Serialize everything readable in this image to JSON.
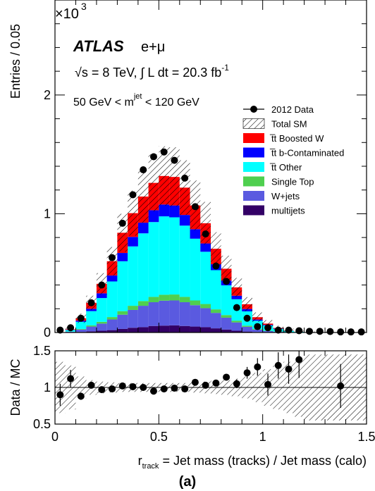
{
  "top_panel": {
    "ylabel": "Entries / 0.05",
    "multiplier_base": "×10",
    "multiplier_exp": "3",
    "yticks": [
      {
        "value": 0,
        "label": "0"
      },
      {
        "value": 1,
        "label": "1"
      },
      {
        "value": 2,
        "label": "2"
      }
    ],
    "ylim": [
      0,
      2.8
    ]
  },
  "annotations": {
    "atlas": "ATLAS",
    "channel": "e+μ",
    "energy_prefix": "√s = 8 TeV, ∫ L dt = 20.3 fb",
    "energy_sup": "-1",
    "mass_range_prefix": "50 GeV < m",
    "mass_range_sup": "jet",
    "mass_range_suffix": " < 120 GeV"
  },
  "bottom_panel": {
    "ylabel": "Data / MC",
    "yticks": [
      {
        "value": 0.5,
        "label": "0.5"
      },
      {
        "value": 1,
        "label": "1"
      },
      {
        "value": 1.5,
        "label": "1.5"
      }
    ],
    "ylim": [
      0.5,
      1.5
    ]
  },
  "xaxis": {
    "xlabel_r": "r",
    "xlabel_sub": "track",
    "xlabel_rest": " = Jet mass (tracks) / Jet mass (calo)",
    "xticks": [
      {
        "value": 0,
        "label": "0"
      },
      {
        "value": 0.5,
        "label": "0.5"
      },
      {
        "value": 1,
        "label": "1"
      },
      {
        "value": 1.5,
        "label": "1.5"
      }
    ],
    "xlim": [
      0,
      1.5
    ]
  },
  "panel_label": "(a)",
  "colors": {
    "boostedW": "#ff0000",
    "bcontam": "#0000ff",
    "ttother": "#00ffff",
    "singletop": "#4fcf4f",
    "wjets": "#5a5ae0",
    "multijets": "#330066",
    "data": "#000000"
  },
  "chart_data": {
    "type": "bar",
    "stacked": true,
    "bin_width": 0.05,
    "bin_edges_start": 0.0,
    "units": "entries (x10^3)",
    "series": [
      {
        "name": "multijets",
        "key": "multijets",
        "values": [
          0,
          0.002,
          0.005,
          0.01,
          0.015,
          0.02,
          0.03,
          0.04,
          0.045,
          0.055,
          0.058,
          0.06,
          0.055,
          0.05,
          0.045,
          0.035,
          0.025,
          0.015,
          0.008,
          0.004,
          0.002,
          0.001,
          0,
          0,
          0,
          0,
          0,
          0,
          0,
          0
        ]
      },
      {
        "name": "W+jets",
        "key": "wjets",
        "values": [
          0,
          0.005,
          0.02,
          0.04,
          0.06,
          0.09,
          0.12,
          0.15,
          0.18,
          0.2,
          0.21,
          0.21,
          0.2,
          0.18,
          0.16,
          0.13,
          0.1,
          0.07,
          0.04,
          0.02,
          0.01,
          0.005,
          0.002,
          0,
          0,
          0,
          0,
          0,
          0,
          0
        ]
      },
      {
        "name": "Single Top",
        "key": "singletop",
        "values": [
          0,
          0.001,
          0.005,
          0.01,
          0.015,
          0.02,
          0.03,
          0.035,
          0.04,
          0.045,
          0.05,
          0.05,
          0.045,
          0.04,
          0.035,
          0.03,
          0.022,
          0.015,
          0.01,
          0.005,
          0.003,
          0.002,
          0.001,
          0,
          0,
          0,
          0,
          0,
          0,
          0
        ]
      },
      {
        "name": "t̅t Other",
        "key": "ttother",
        "values": [
          0,
          0.012,
          0.06,
          0.12,
          0.2,
          0.3,
          0.42,
          0.5,
          0.57,
          0.63,
          0.66,
          0.65,
          0.6,
          0.52,
          0.44,
          0.33,
          0.25,
          0.18,
          0.12,
          0.07,
          0.045,
          0.022,
          0.012,
          0.006,
          0.003,
          0.002,
          0.001,
          0,
          0,
          0
        ]
      },
      {
        "name": "t̅t b-Contaminated",
        "key": "bcontam",
        "values": [
          0,
          0.003,
          0.01,
          0.02,
          0.04,
          0.05,
          0.07,
          0.08,
          0.09,
          0.1,
          0.1,
          0.1,
          0.09,
          0.08,
          0.07,
          0.05,
          0.04,
          0.03,
          0.02,
          0.01,
          0.005,
          0.003,
          0.001,
          0,
          0,
          0,
          0,
          0,
          0,
          0
        ]
      },
      {
        "name": "t̅t Boosted W",
        "key": "boostedW",
        "values": [
          0,
          0.004,
          0.02,
          0.05,
          0.08,
          0.12,
          0.17,
          0.2,
          0.22,
          0.23,
          0.24,
          0.24,
          0.23,
          0.2,
          0.17,
          0.13,
          0.1,
          0.07,
          0.04,
          0.02,
          0.01,
          0.005,
          0.002,
          0.001,
          0,
          0,
          0,
          0,
          0,
          0
        ]
      }
    ],
    "total_sm": [
      0,
      0.027,
      0.12,
      0.25,
      0.41,
      0.6,
      0.84,
      1.005,
      1.145,
      1.26,
      1.318,
      1.31,
      1.22,
      1.07,
      0.92,
      0.705,
      0.537,
      0.38,
      0.238,
      0.129,
      0.075,
      0.038,
      0.018,
      0.007,
      0.003,
      0.002,
      0.001,
      0,
      0,
      0
    ],
    "total_sm_unc": [
      0,
      0.015,
      0.04,
      0.06,
      0.09,
      0.12,
      0.16,
      0.19,
      0.22,
      0.24,
      0.25,
      0.25,
      0.23,
      0.21,
      0.18,
      0.14,
      0.11,
      0.08,
      0.06,
      0.04,
      0.03,
      0.02,
      0.015,
      0.01,
      0.008,
      0.006,
      0.005,
      0.004,
      0.003,
      0.003
    ],
    "data": {
      "name": "2012 Data",
      "x": [
        0.025,
        0.075,
        0.125,
        0.175,
        0.225,
        0.275,
        0.325,
        0.375,
        0.425,
        0.475,
        0.525,
        0.575,
        0.625,
        0.675,
        0.725,
        0.775,
        0.825,
        0.875,
        0.925,
        0.975,
        1.025,
        1.075,
        1.125,
        1.175,
        1.225,
        1.275,
        1.325,
        1.375,
        1.425,
        1.475
      ],
      "y": [
        0.02,
        0.04,
        0.12,
        0.25,
        0.4,
        0.63,
        0.92,
        1.16,
        1.37,
        1.48,
        1.52,
        1.45,
        1.3,
        1.06,
        0.83,
        0.56,
        0.43,
        0.21,
        0.12,
        0.05,
        0.04,
        0.02,
        0.02,
        0.015,
        0.01,
        0.01,
        0.008,
        0.005,
        0.005,
        0.005
      ]
    },
    "ratio": {
      "x": [
        0.025,
        0.075,
        0.125,
        0.175,
        0.225,
        0.275,
        0.325,
        0.375,
        0.425,
        0.475,
        0.525,
        0.575,
        0.625,
        0.675,
        0.725,
        0.775,
        0.825,
        0.875,
        0.925,
        0.975,
        1.025,
        1.075,
        1.125,
        1.175,
        1.375
      ],
      "y": [
        0.9,
        1.12,
        0.88,
        1.03,
        0.97,
        0.98,
        1.02,
        1.01,
        1.0,
        0.95,
        0.98,
        0.99,
        0.98,
        1.07,
        1.03,
        1.06,
        1.14,
        1.05,
        1.2,
        1.28,
        1.04,
        1.3,
        1.25,
        1.38,
        1.02
      ],
      "err": [
        0.15,
        0.12,
        0.05,
        0.04,
        0.03,
        0.03,
        0.02,
        0.02,
        0.02,
        0.02,
        0.02,
        0.02,
        0.02,
        0.02,
        0.02,
        0.03,
        0.04,
        0.06,
        0.08,
        0.12,
        0.15,
        0.18,
        0.2,
        0.25,
        0.3
      ]
    },
    "ratio_band_unc": [
      0.35,
      0.3,
      0.15,
      0.1,
      0.08,
      0.07,
      0.06,
      0.06,
      0.06,
      0.06,
      0.06,
      0.06,
      0.06,
      0.07,
      0.08,
      0.09,
      0.1,
      0.12,
      0.15,
      0.2,
      0.25,
      0.3,
      0.35,
      0.4,
      0.45,
      0.45,
      0.45,
      0.45,
      0.45,
      0.45
    ],
    "legend": {
      "placement": "top-right",
      "entries": [
        {
          "label": "2012 Data",
          "style": "marker"
        },
        {
          "label": "Total SM",
          "style": "hatch"
        },
        {
          "label": "t̅t Boosted W",
          "style": "fill",
          "key": "boostedW"
        },
        {
          "label": "t̅t b-Contaminated",
          "style": "fill",
          "key": "bcontam"
        },
        {
          "label": "t̅t Other",
          "style": "fill",
          "key": "ttother"
        },
        {
          "label": "Single Top",
          "style": "fill",
          "key": "singletop"
        },
        {
          "label": "W+jets",
          "style": "fill",
          "key": "wjets"
        },
        {
          "label": "multijets",
          "style": "fill",
          "key": "multijets"
        }
      ]
    }
  }
}
